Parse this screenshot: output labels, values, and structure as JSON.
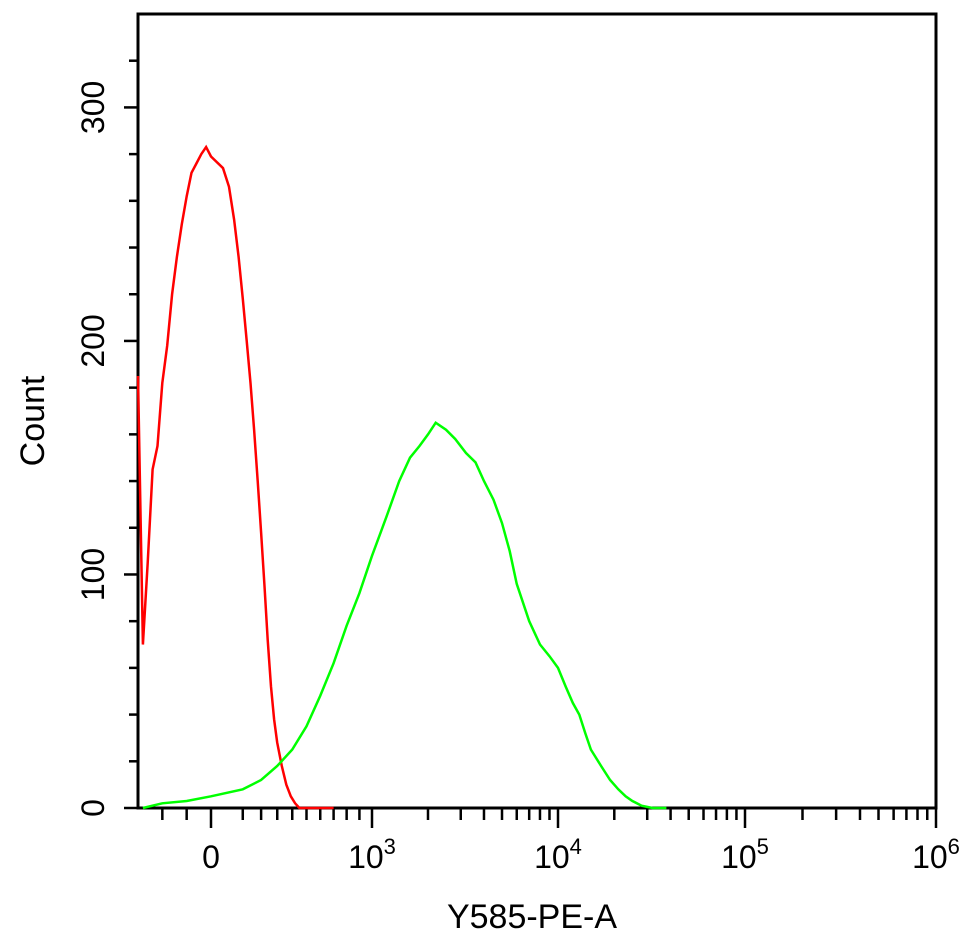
{
  "chart_data": {
    "type": "line",
    "title": "",
    "xlabel": "Y585-PE-A",
    "ylabel": "Count",
    "x_scale": "biexponential",
    "xlim": [
      -300,
      1000000
    ],
    "ylim": [
      0,
      340
    ],
    "grid": false,
    "legend": "none",
    "x_tick_labels": [
      {
        "value": 0,
        "base": "0",
        "exp": ""
      },
      {
        "value": 1000,
        "base": "10",
        "exp": "3"
      },
      {
        "value": 10000,
        "base": "10",
        "exp": "4"
      },
      {
        "value": 100000,
        "base": "10",
        "exp": "5"
      },
      {
        "value": 1000000,
        "base": "10",
        "exp": "6"
      }
    ],
    "y_ticks": [
      0,
      100,
      200,
      300
    ],
    "y_tick_labels": [
      "0",
      "100",
      "200",
      "300"
    ],
    "series": [
      {
        "color": "#ff0000",
        "x": [
          -300,
          -280,
          -260,
          -240,
          -220,
          -200,
          -180,
          -160,
          -140,
          -120,
          -100,
          -80,
          -60,
          -40,
          -20,
          0,
          20,
          40,
          60,
          80,
          100,
          120,
          140,
          160,
          180,
          200,
          220,
          240,
          260,
          280,
          300,
          330,
          360,
          390,
          420,
          450,
          480,
          510,
          540,
          570,
          600,
          630,
          700
        ],
        "y": [
          185,
          70,
          105,
          145,
          155,
          182,
          198,
          220,
          236,
          250,
          262,
          272,
          276,
          280,
          283,
          279,
          274,
          266,
          252,
          236,
          218,
          200,
          182,
          162,
          140,
          118,
          95,
          72,
          52,
          38,
          28,
          18,
          10,
          5,
          2,
          0,
          0,
          0,
          0,
          0,
          0,
          0,
          0
        ]
      },
      {
        "color": "#00ff00",
        "x": [
          -280,
          -200,
          -100,
          0,
          100,
          200,
          300,
          400,
          500,
          600,
          700,
          800,
          900,
          1000,
          1200,
          1400,
          1600,
          1800,
          2000,
          2200,
          2500,
          2800,
          3200,
          3600,
          4000,
          4500,
          5000,
          5500,
          6000,
          7000,
          8000,
          9000,
          10000,
          11000,
          12000,
          13000,
          14000,
          15000,
          17000,
          19000,
          21000,
          23000,
          25000,
          28000,
          32000,
          38000
        ],
        "y": [
          0,
          2,
          3,
          5,
          8,
          12,
          18,
          25,
          35,
          48,
          62,
          78,
          92,
          108,
          125,
          140,
          150,
          155,
          160,
          165,
          162,
          158,
          152,
          148,
          140,
          132,
          122,
          110,
          96,
          80,
          70,
          65,
          60,
          52,
          45,
          40,
          32,
          25,
          18,
          12,
          8,
          5,
          3,
          1,
          0,
          0
        ]
      }
    ]
  }
}
